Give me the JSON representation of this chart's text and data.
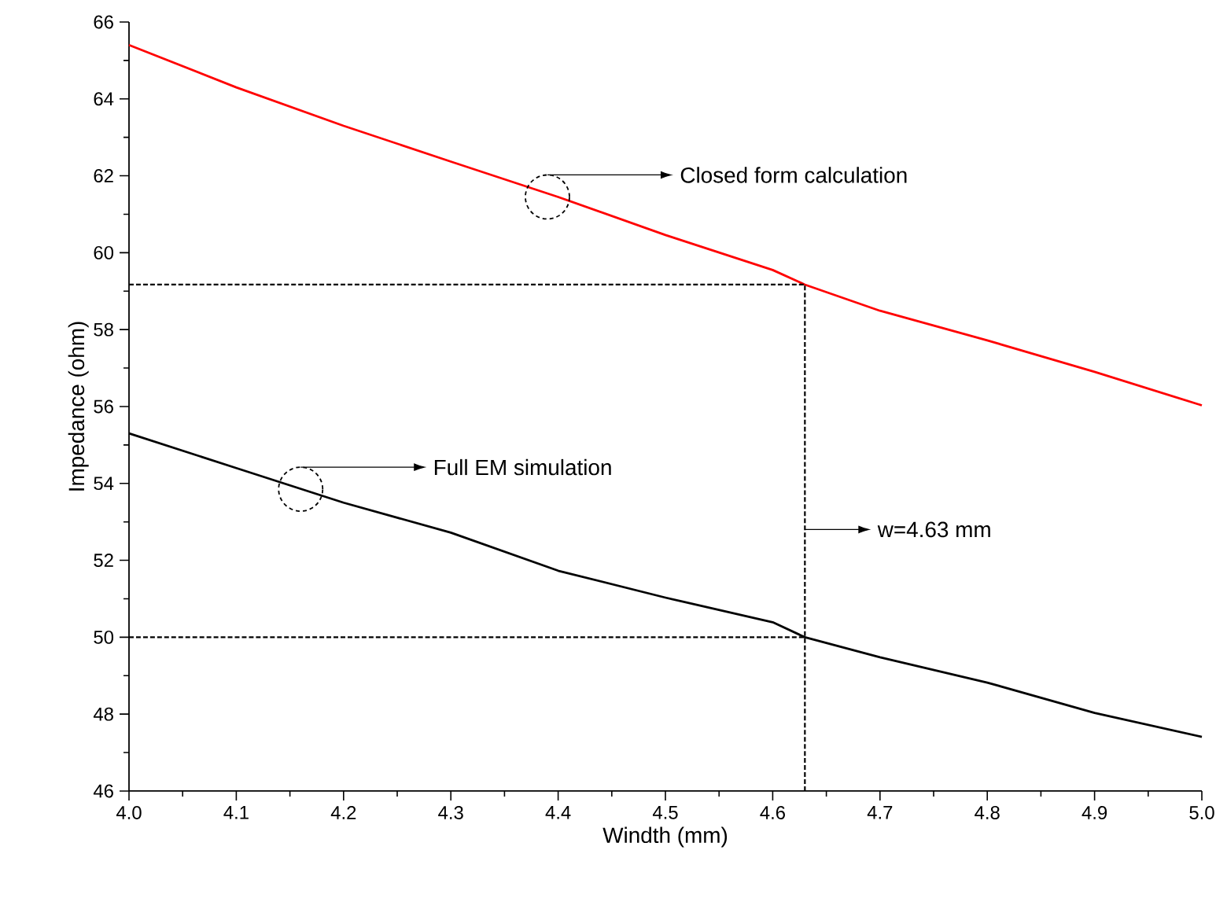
{
  "chart_data": {
    "type": "line",
    "xlabel": "Windth (mm)",
    "ylabel": "Impedance (ohm)",
    "x": [
      4.0,
      4.1,
      4.2,
      4.3,
      4.4,
      4.5,
      4.6,
      4.63,
      4.7,
      4.8,
      4.9,
      5.0
    ],
    "series": [
      {
        "color": "#ff0000",
        "values": [
          65.4,
          64.3,
          63.3,
          62.37,
          61.45,
          60.46,
          59.55,
          59.17,
          58.49,
          57.72,
          56.9,
          56.03
        ]
      },
      {
        "color": "#000000",
        "values": [
          55.3,
          54.4,
          53.5,
          52.72,
          51.73,
          51.03,
          50.39,
          50.0,
          49.48,
          48.82,
          48.03,
          47.41
        ]
      }
    ],
    "ref_lines": [
      {
        "axis": "y",
        "value": 59.17,
        "color": "#000000",
        "line_style": "dotted"
      },
      {
        "axis": "y",
        "value": 50.0,
        "color": "#000000",
        "line_style": "dotted"
      },
      {
        "axis": "x",
        "value": 4.63,
        "color": "#000000",
        "line_style": "dotted"
      }
    ],
    "annotations": [
      "Closed form calculation",
      "Full EM simulation",
      "w=4.63 mm"
    ],
    "xlim": [
      4.0,
      5.0
    ],
    "ylim": [
      46,
      66
    ],
    "xticks": [
      {
        "value": 4.0,
        "label": "4.0"
      },
      4.1,
      4.2,
      4.3,
      4.4,
      4.5,
      4.6,
      4.7,
      4.8,
      4.9,
      {
        "value": 5.0,
        "label": "5.0"
      }
    ],
    "yticks": [
      46,
      48,
      50,
      52,
      54,
      56,
      58,
      60,
      62,
      64,
      66
    ],
    "grid": false,
    "marker": "none",
    "line_style": "solid"
  }
}
